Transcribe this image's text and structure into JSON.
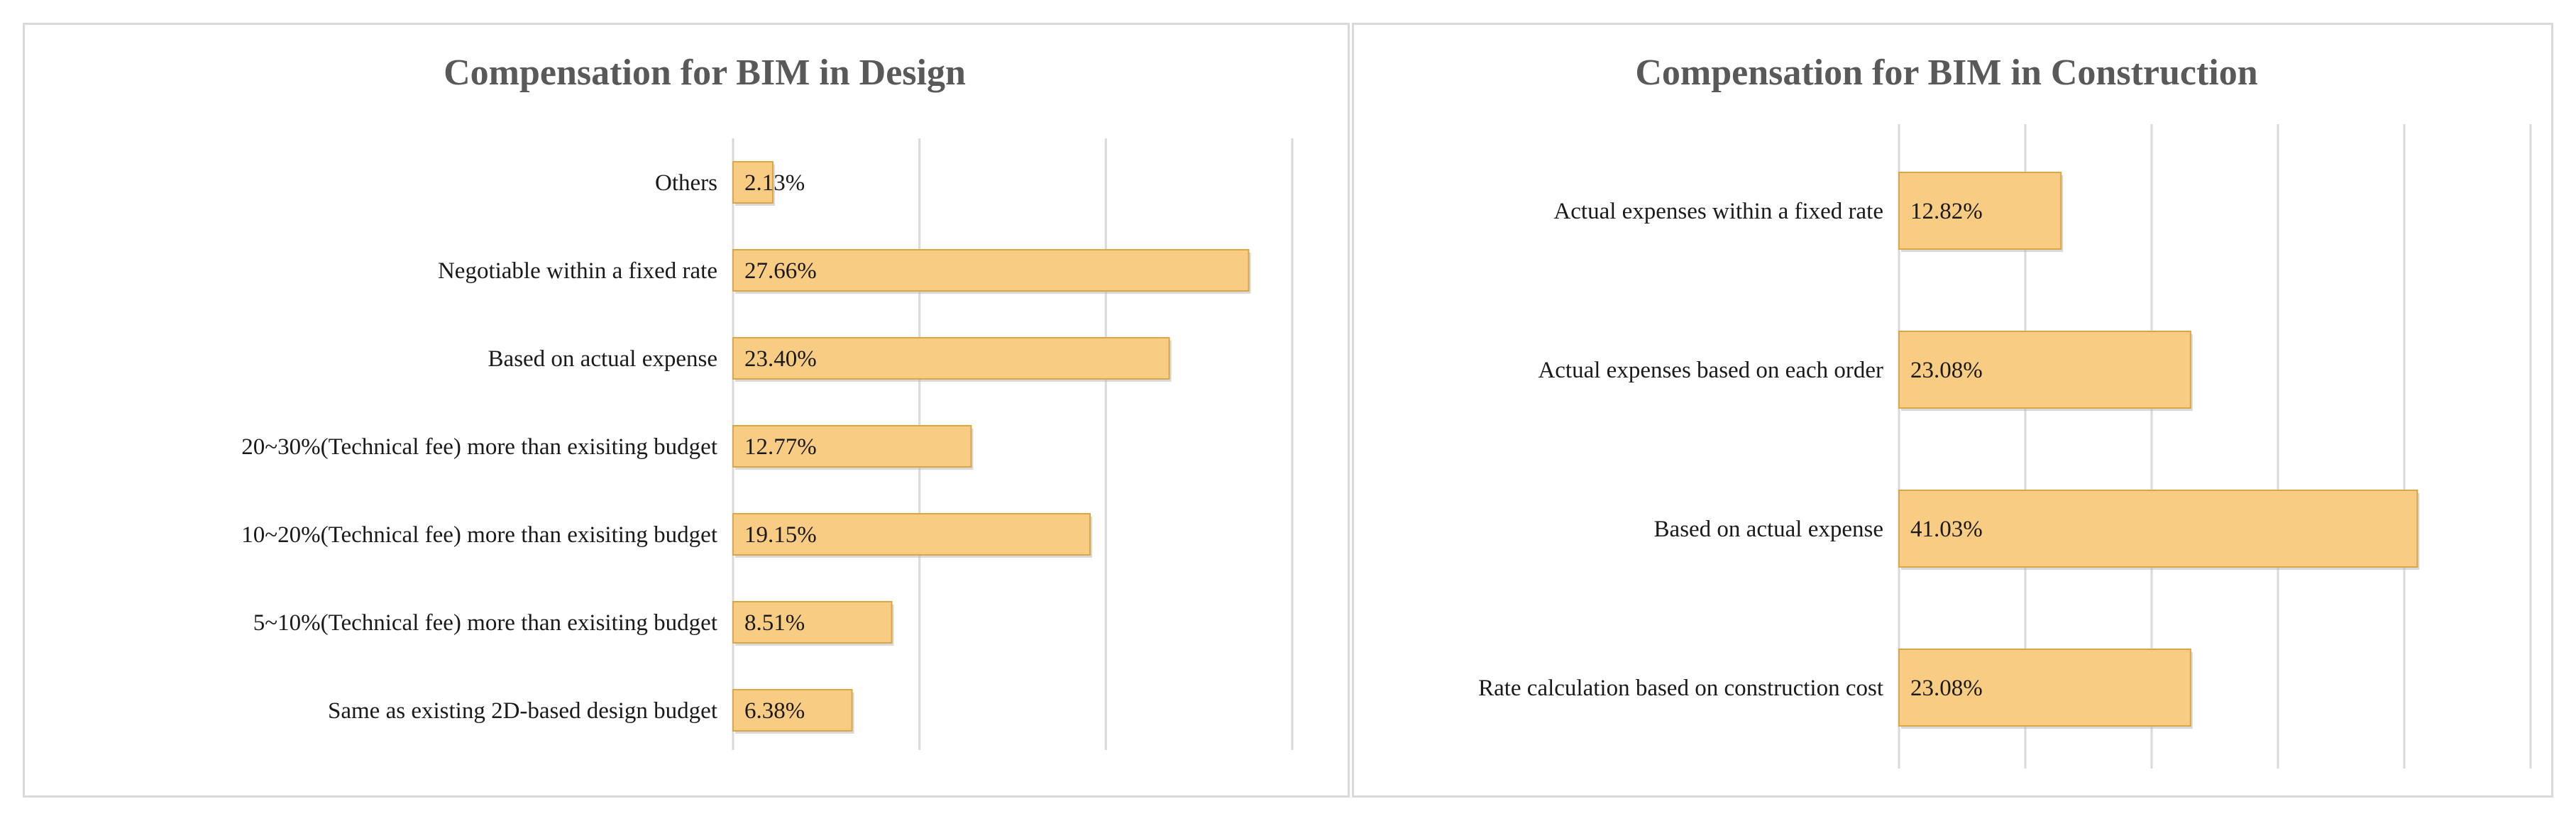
{
  "chart_data": [
    {
      "type": "bar",
      "orientation": "horizontal",
      "title": "Compensation for BIM in Design",
      "categories": [
        "Others",
        "Negotiable within a fixed rate",
        "Based on actual expense",
        "20~30%(Technical fee) more than exisiting budget",
        "10~20%(Technical fee) more than exisiting budget",
        "5~10%(Technical fee) more than exisiting budget",
        "Same as existing 2D-based design budget"
      ],
      "values": [
        2.13,
        27.66,
        23.4,
        12.77,
        19.15,
        8.51,
        6.38
      ],
      "labels": [
        "2.13%",
        "27.66%",
        "23.40%",
        "12.77%",
        "19.15%",
        "8.51%",
        "6.38%"
      ],
      "xlim": [
        0,
        30
      ],
      "xgrid_step": 10,
      "grid": true,
      "legend": "none",
      "bar_color": "#f9cc84",
      "bar_edge_color": "#d9a648"
    },
    {
      "type": "bar",
      "orientation": "horizontal",
      "title": "Compensation for BIM in Construction",
      "categories": [
        "Actual expenses within a fixed rate",
        "Actual expenses based on each order",
        "Based on actual expense",
        "Rate calculation based on construction cost"
      ],
      "values": [
        12.82,
        23.08,
        41.03,
        23.08
      ],
      "labels": [
        "12.82%",
        "23.08%",
        "41.03%",
        "23.08%"
      ],
      "xlim": [
        0,
        50
      ],
      "xgrid_step": 10,
      "grid": true,
      "legend": "none",
      "bar_color": "#f9cc84",
      "bar_edge_color": "#d9a648"
    }
  ]
}
